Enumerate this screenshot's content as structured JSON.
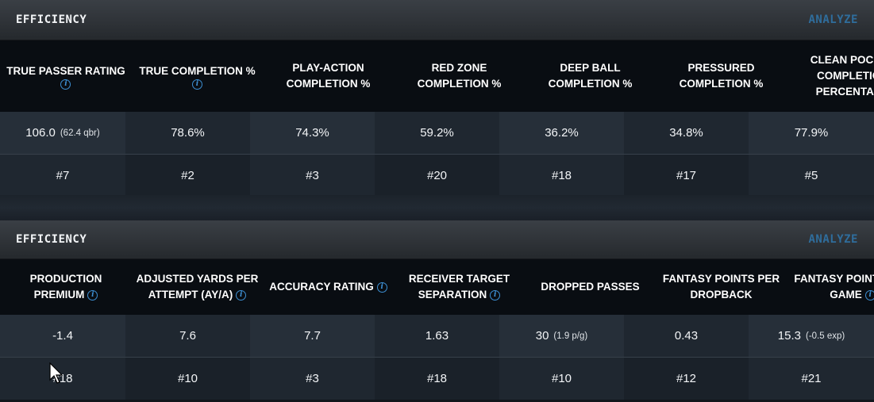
{
  "panel1": {
    "title": "EFFICIENCY",
    "analyze": "ANALYZE",
    "metrics": [
      {
        "label": "TRUE PASSER RATING",
        "info": true,
        "value": "106.0",
        "sub": "(62.4 qbr)",
        "rank": "#7"
      },
      {
        "label": "TRUE COMPLETION %",
        "info": true,
        "value": "78.6%",
        "sub": "",
        "rank": "#2"
      },
      {
        "label": "PLAY-ACTION COMPLETION %",
        "info": false,
        "value": "74.3%",
        "sub": "",
        "rank": "#3"
      },
      {
        "label": "RED ZONE COMPLETION %",
        "info": false,
        "value": "59.2%",
        "sub": "",
        "rank": "#20"
      },
      {
        "label": "DEEP BALL COMPLETION %",
        "info": false,
        "value": "36.2%",
        "sub": "",
        "rank": "#18"
      },
      {
        "label": "PRESSURED COMPLETION %",
        "info": false,
        "value": "34.8%",
        "sub": "",
        "rank": "#17"
      },
      {
        "label": "CLEAN POCKET COMPLETION PERCENTAGE",
        "info": false,
        "value": "77.9%",
        "sub": "",
        "rank": "#5"
      }
    ]
  },
  "panel2": {
    "title": "EFFICIENCY",
    "analyze": "ANALYZE",
    "metrics": [
      {
        "label": "PRODUCTION PREMIUM",
        "info": true,
        "value": "-1.4",
        "sub": "",
        "rank": "#18"
      },
      {
        "label": "ADJUSTED YARDS PER ATTEMPT (AY/A)",
        "info": true,
        "value": "7.6",
        "sub": "",
        "rank": "#10"
      },
      {
        "label": "ACCURACY RATING",
        "info": true,
        "value": "7.7",
        "sub": "",
        "rank": "#3"
      },
      {
        "label": "RECEIVER TARGET SEPARATION",
        "info": true,
        "value": "1.63",
        "sub": "",
        "rank": "#18"
      },
      {
        "label": "DROPPED PASSES",
        "info": false,
        "value": "30",
        "sub": "(1.9 p/g)",
        "rank": "#10"
      },
      {
        "label": "FANTASY POINTS PER DROPBACK",
        "info": false,
        "value": "0.43",
        "sub": "",
        "rank": "#12"
      },
      {
        "label": "FANTASY POINTS PER GAME",
        "info": true,
        "value": "15.3",
        "sub": "(-0.5 exp)",
        "rank": "#21"
      }
    ]
  },
  "icons": {
    "info": "info-icon",
    "cursor": "mouse-pointer-icon"
  },
  "colors": {
    "accent": "#3d8fd3",
    "analyze": "#2f6d9c"
  }
}
